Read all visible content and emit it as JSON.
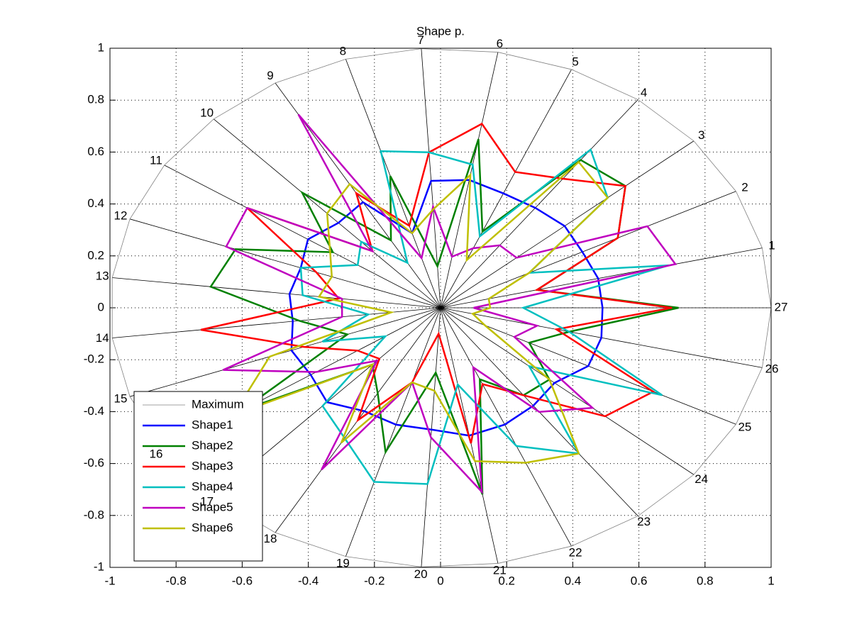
{
  "chart_data": {
    "type": "radar",
    "title": "Shape p.",
    "categories": [
      "1",
      "2",
      "3",
      "4",
      "5",
      "6",
      "7",
      "8",
      "9",
      "10",
      "11",
      "12",
      "13",
      "14",
      "15",
      "16",
      "17",
      "18",
      "19",
      "20",
      "21",
      "22",
      "23",
      "24",
      "25",
      "26",
      "27"
    ],
    "series": [
      {
        "name": "Maximum",
        "color": "#808080",
        "values": [
          1,
          1,
          1,
          1,
          1,
          1,
          1,
          1,
          1,
          1,
          1,
          1,
          1,
          1,
          1,
          1,
          1,
          1,
          1,
          1,
          1,
          1,
          1,
          1,
          1,
          1,
          1
        ]
      },
      {
        "name": "Shape1",
        "color": "#0000ff",
        "values": [
          0.49,
          0.48,
          0.49,
          0.48,
          0.48,
          0.5,
          0.49,
          0.3,
          0.47,
          0.45,
          0.48,
          0.45,
          0.46,
          0.45,
          0.48,
          0.47,
          0.5,
          0.46,
          0.47,
          0.47,
          0.5,
          0.49,
          0.47,
          0.45,
          0.5,
          0.5,
          0.49
        ]
      },
      {
        "name": "Shape2",
        "color": "#008000",
        "values": [
          0.3,
          0.6,
          0.73,
          0.71,
          0.32,
          0.66,
          0.16,
          0.53,
          0.3,
          0.61,
          0.39,
          0.66,
          0.7,
          0.43,
          0.3,
          0.72,
          0.3,
          0.38,
          0.58,
          0.25,
          0.73,
          0.3,
          0.42,
          0.43,
          0.3,
          0.4,
          0.72
        ]
      },
      {
        "name": "Shape3",
        "color": "#ff0000",
        "values": [
          0.3,
          0.6,
          0.73,
          0.62,
          0.57,
          0.72,
          0.6,
          0.33,
          0.51,
          0.3,
          0.7,
          0.4,
          0.31,
          0.73,
          0.44,
          0.3,
          0.27,
          0.5,
          0.3,
          0.1,
          0.53,
          0.32,
          0.42,
          0.65,
          0.72,
          0.36,
          0.7
        ]
      },
      {
        "name": "Shape4",
        "color": "#00bfbf",
        "values": [
          0.71,
          0.3,
          0.66,
          0.76,
          0.3,
          0.56,
          0.6,
          0.63,
          0.2,
          0.35,
          0.3,
          0.45,
          0.42,
          0.22,
          0.38,
          0.2,
          0.52,
          0.58,
          0.7,
          0.68,
          0.3,
          0.58,
          0.7,
          0.35,
          0.75,
          0.4,
          0.25
        ]
      },
      {
        "name": "Shape5",
        "color": "#bf00bf",
        "values": [
          0.73,
          0.7,
          0.3,
          0.3,
          0.25,
          0.2,
          0.39,
          0.2,
          0.86,
          0.3,
          0.7,
          0.69,
          0.3,
          0.3,
          0.7,
          0.45,
          0.28,
          0.72,
          0.3,
          0.5,
          0.72,
          0.25,
          0.5,
          0.6,
          0.25,
          0.3,
          0.1
        ]
      },
      {
        "name": "Shape6",
        "color": "#bfbf00",
        "values": [
          0.15,
          0.3,
          0.66,
          0.7,
          0.2,
          0.52,
          0.38,
          0.3,
          0.55,
          0.5,
          0.4,
          0.35,
          0.37,
          0.15,
          0.55,
          0.75,
          0.3,
          0.6,
          0.3,
          0.32,
          0.6,
          0.65,
          0.7,
          0.43,
          0.15,
          0.1,
          0.15
        ]
      }
    ],
    "xlim": [
      -1,
      1
    ],
    "ylim": [
      -1,
      1
    ],
    "xticks": [
      -1,
      -0.8,
      -0.6,
      -0.4,
      -0.2,
      0,
      0.2,
      0.4,
      0.6,
      0.8,
      1
    ],
    "yticks": [
      -1,
      -0.8,
      -0.6,
      -0.4,
      -0.2,
      0,
      0.2,
      0.4,
      0.6,
      0.8,
      1
    ],
    "grid": true,
    "legend": "lower-left"
  }
}
